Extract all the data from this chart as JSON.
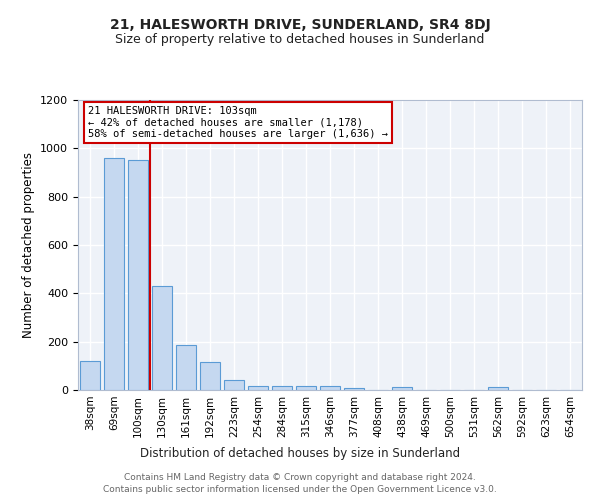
{
  "title": "21, HALESWORTH DRIVE, SUNDERLAND, SR4 8DJ",
  "subtitle": "Size of property relative to detached houses in Sunderland",
  "xlabel": "Distribution of detached houses by size in Sunderland",
  "ylabel": "Number of detached properties",
  "categories": [
    "38sqm",
    "69sqm",
    "100sqm",
    "130sqm",
    "161sqm",
    "192sqm",
    "223sqm",
    "254sqm",
    "284sqm",
    "315sqm",
    "346sqm",
    "377sqm",
    "408sqm",
    "438sqm",
    "469sqm",
    "500sqm",
    "531sqm",
    "562sqm",
    "592sqm",
    "623sqm",
    "654sqm"
  ],
  "values": [
    120,
    960,
    950,
    430,
    185,
    115,
    42,
    18,
    15,
    18,
    18,
    10,
    0,
    12,
    0,
    0,
    0,
    12,
    0,
    0,
    0
  ],
  "bar_color": "#c5d8f0",
  "bar_edge_color": "#5b9bd5",
  "ylim": [
    0,
    1200
  ],
  "yticks": [
    0,
    200,
    400,
    600,
    800,
    1000,
    1200
  ],
  "property_bar_index": 2,
  "vline_color": "#cc0000",
  "annotation_line1": "21 HALESWORTH DRIVE: 103sqm",
  "annotation_line2": "← 42% of detached houses are smaller (1,178)",
  "annotation_line3": "58% of semi-detached houses are larger (1,636) →",
  "annotation_box_color": "#ffffff",
  "annotation_box_edge_color": "#cc0000",
  "footer_line1": "Contains HM Land Registry data © Crown copyright and database right 2024.",
  "footer_line2": "Contains public sector information licensed under the Open Government Licence v3.0.",
  "background_color": "#eef2f8",
  "grid_color": "#ffffff",
  "fig_bg_color": "#ffffff",
  "title_fontsize": 10,
  "subtitle_fontsize": 9
}
